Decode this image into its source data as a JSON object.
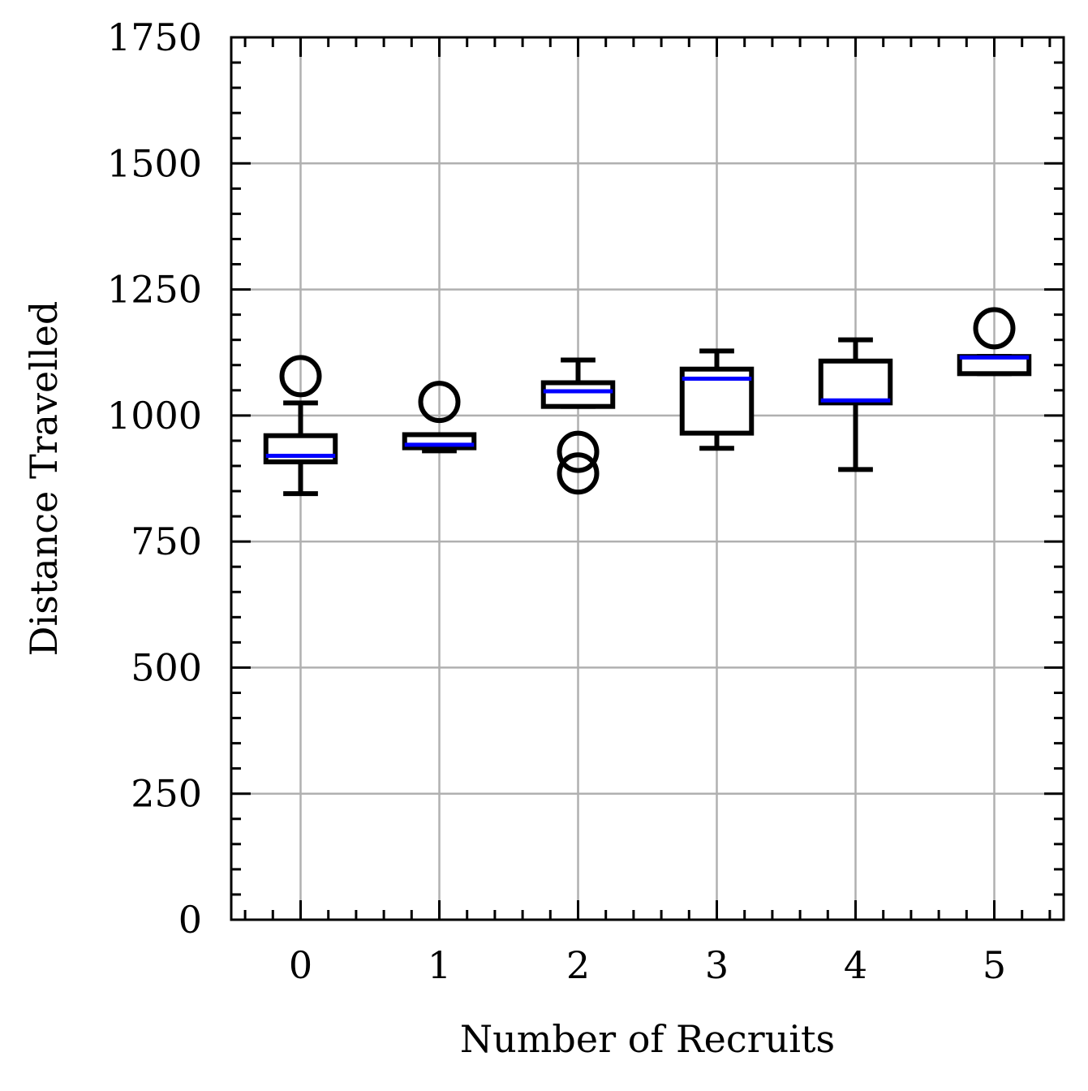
{
  "chart_data": {
    "type": "box",
    "title": "",
    "xlabel": "Number of Recruits",
    "ylabel": "Distance Travelled",
    "xlim": [
      -0.5,
      5.5
    ],
    "ylim": [
      0,
      1750
    ],
    "xticks": [
      "0",
      "1",
      "2",
      "3",
      "4",
      "5"
    ],
    "yticks": [
      "0",
      "250",
      "500",
      "750",
      "1000",
      "1250",
      "1500",
      "1750"
    ],
    "grid": true,
    "box_color": "#000000",
    "median_color": "#0000ff",
    "grid_color": "#b0b0b0",
    "boxes": [
      {
        "category": "0",
        "whisker_low": 845,
        "q1": 908,
        "median": 920,
        "q3": 960,
        "whisker_high": 1025,
        "outliers": [
          1078
        ]
      },
      {
        "category": "1",
        "whisker_low": 930,
        "q1": 936,
        "median": 942,
        "q3": 962,
        "whisker_high": 962,
        "outliers": [
          1027
        ]
      },
      {
        "category": "2",
        "whisker_low": 1018,
        "q1": 1018,
        "median": 1048,
        "q3": 1065,
        "whisker_high": 1110,
        "outliers": [
          928,
          885
        ]
      },
      {
        "category": "3",
        "whisker_low": 935,
        "q1": 965,
        "median": 1073,
        "q3": 1092,
        "whisker_high": 1128,
        "outliers": []
      },
      {
        "category": "4",
        "whisker_low": 893,
        "q1": 1025,
        "median": 1030,
        "q3": 1108,
        "whisker_high": 1150,
        "outliers": []
      },
      {
        "category": "5",
        "whisker_low": 1083,
        "q1": 1083,
        "median": 1115,
        "q3": 1117,
        "whisker_high": 1117,
        "outliers": [
          1173
        ]
      }
    ]
  }
}
